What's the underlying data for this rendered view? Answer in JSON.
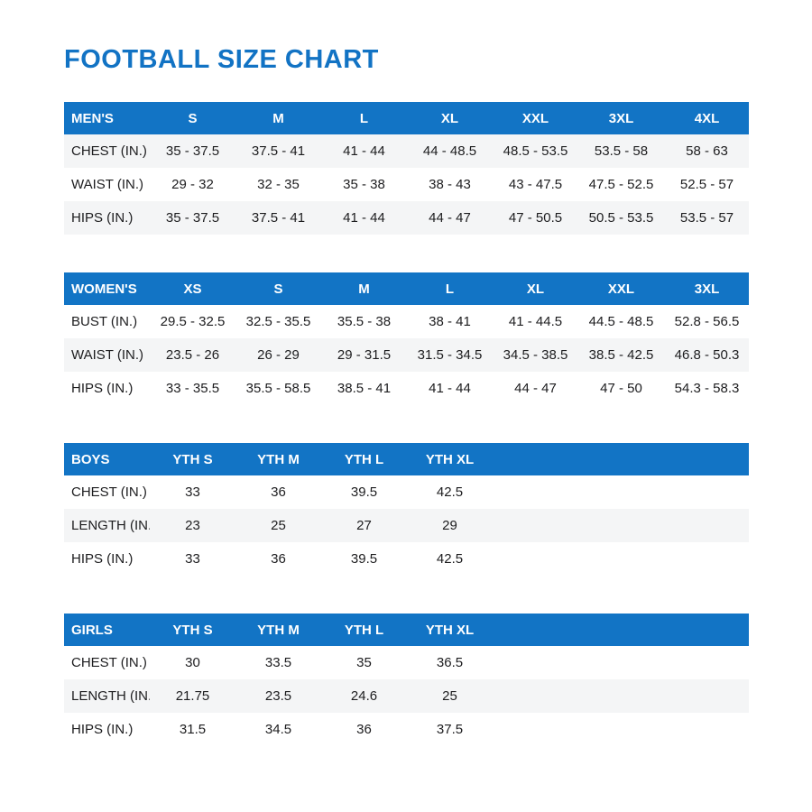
{
  "page": {
    "title": "FOOTBALL SIZE CHART"
  },
  "colors": {
    "accent_blue": "#1274c5",
    "title_blue": "#1273c4",
    "header_text": "#ffffff",
    "row_stripe": "#f4f5f6",
    "body_text": "#1d1d1f"
  },
  "tables": [
    {
      "id": "mens",
      "header": [
        "MEN'S",
        "S",
        "M",
        "L",
        "XL",
        "XXL",
        "3XL",
        "4XL"
      ],
      "rows": [
        {
          "label": "CHEST (IN.)",
          "values": [
            "35 - 37.5",
            "37.5 - 41",
            "41 - 44",
            "44 - 48.5",
            "48.5 - 53.5",
            "53.5 - 58",
            "58 - 63"
          ]
        },
        {
          "label": "WAIST (IN.)",
          "values": [
            "29 - 32",
            "32 - 35",
            "35 - 38",
            "38 - 43",
            "43 - 47.5",
            "47.5 - 52.5",
            "52.5 - 57"
          ]
        },
        {
          "label": "HIPS (IN.)",
          "values": [
            "35 - 37.5",
            "37.5 - 41",
            "41 - 44",
            "44 - 47",
            "47 - 50.5",
            "50.5 - 53.5",
            "53.5 - 57"
          ]
        }
      ]
    },
    {
      "id": "womens",
      "header": [
        "WOMEN'S",
        "XS",
        "S",
        "M",
        "L",
        "XL",
        "XXL",
        "3XL"
      ],
      "rows": [
        {
          "label": "BUST (IN.)",
          "values": [
            "29.5 - 32.5",
            "32.5 - 35.5",
            "35.5 - 38",
            "38 - 41",
            "41 - 44.5",
            "44.5 - 48.5",
            "52.8 - 56.5"
          ]
        },
        {
          "label": "WAIST (IN.)",
          "values": [
            "23.5 - 26",
            "26 - 29",
            "29 - 31.5",
            "31.5 - 34.5",
            "34.5 - 38.5",
            "38.5 - 42.5",
            "46.8 - 50.3"
          ]
        },
        {
          "label": "HIPS (IN.)",
          "values": [
            "33 - 35.5",
            "35.5 - 58.5",
            "38.5 - 41",
            "41 - 44",
            "44 - 47",
            "47 - 50",
            "54.3 - 58.3"
          ]
        }
      ]
    },
    {
      "id": "boys",
      "header": [
        "BOYS",
        "YTH S",
        "YTH M",
        "YTH L",
        "YTH XL"
      ],
      "rows": [
        {
          "label": "CHEST (IN.)",
          "values": [
            "33",
            "36",
            "39.5",
            "42.5"
          ]
        },
        {
          "label": "LENGTH (IN.)",
          "values": [
            "23",
            "25",
            "27",
            "29"
          ]
        },
        {
          "label": "HIPS (IN.)",
          "values": [
            "33",
            "36",
            "39.5",
            "42.5"
          ]
        }
      ]
    },
    {
      "id": "girls",
      "header": [
        "GIRLS",
        "YTH S",
        "YTH M",
        "YTH L",
        "YTH XL"
      ],
      "rows": [
        {
          "label": "CHEST (IN.)",
          "values": [
            "30",
            "33.5",
            "35",
            "36.5"
          ]
        },
        {
          "label": "LENGTH (IN.)",
          "values": [
            "21.75",
            "23.5",
            "24.6",
            "25"
          ]
        },
        {
          "label": "HIPS (IN.)",
          "values": [
            "31.5",
            "34.5",
            "36",
            "37.5"
          ]
        }
      ]
    }
  ]
}
